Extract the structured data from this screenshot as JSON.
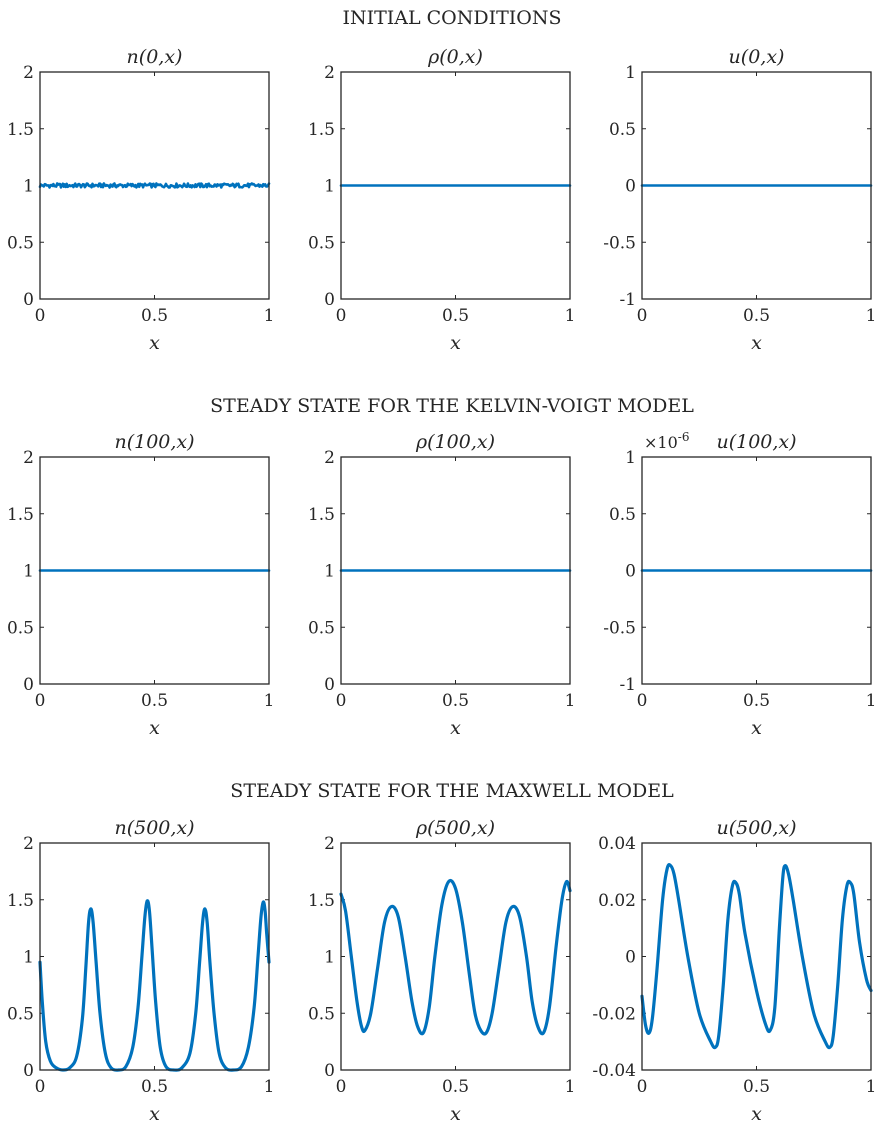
{
  "figure": {
    "line_color": "#0072BD",
    "axis_color": "#262626",
    "rows": [
      {
        "title": "INITIAL CONDITIONS"
      },
      {
        "title": "STEADY STATE FOR THE KELVIN-VOIGT MODEL"
      },
      {
        "title": "STEADY STATE FOR THE MAXWELL MODEL"
      }
    ]
  },
  "chart_data": [
    {
      "type": "line",
      "row": 0,
      "col": 0,
      "title": "n(0,x)",
      "xlabel": "x",
      "ylabel": "",
      "xlim": [
        0,
        1
      ],
      "ylim": [
        0,
        2
      ],
      "xticks": [
        "0",
        "0.5",
        "1"
      ],
      "yticks": [
        "0",
        "0.5",
        "1",
        "1.5",
        "2"
      ],
      "series": [
        {
          "kind": "noise",
          "base": 1.0,
          "amplitude": 0.03
        }
      ]
    },
    {
      "type": "line",
      "row": 0,
      "col": 1,
      "title": "ρ(0,x)",
      "xlabel": "x",
      "ylabel": "",
      "xlim": [
        0,
        1
      ],
      "ylim": [
        0,
        2
      ],
      "xticks": [
        "0",
        "0.5",
        "1"
      ],
      "yticks": [
        "0",
        "0.5",
        "1",
        "1.5",
        "2"
      ],
      "series": [
        {
          "kind": "constant",
          "value": 1.0
        }
      ]
    },
    {
      "type": "line",
      "row": 0,
      "col": 2,
      "title": "u(0,x)",
      "xlabel": "x",
      "ylabel": "",
      "xlim": [
        0,
        1
      ],
      "ylim": [
        -1,
        1
      ],
      "xticks": [
        "0",
        "0.5",
        "1"
      ],
      "yticks": [
        "-1",
        "-0.5",
        "0",
        "0.5",
        "1"
      ],
      "series": [
        {
          "kind": "constant",
          "value": 0.0
        }
      ]
    },
    {
      "type": "line",
      "row": 1,
      "col": 0,
      "title": "n(100,x)",
      "xlabel": "x",
      "ylabel": "",
      "xlim": [
        0,
        1
      ],
      "ylim": [
        0,
        2
      ],
      "xticks": [
        "0",
        "0.5",
        "1"
      ],
      "yticks": [
        "0",
        "0.5",
        "1",
        "1.5",
        "2"
      ],
      "series": [
        {
          "kind": "constant",
          "value": 1.0
        }
      ]
    },
    {
      "type": "line",
      "row": 1,
      "col": 1,
      "title": "ρ(100,x)",
      "xlabel": "x",
      "ylabel": "",
      "xlim": [
        0,
        1
      ],
      "ylim": [
        0,
        2
      ],
      "xticks": [
        "0",
        "0.5",
        "1"
      ],
      "yticks": [
        "0",
        "0.5",
        "1",
        "1.5",
        "2"
      ],
      "series": [
        {
          "kind": "constant",
          "value": 1.0
        }
      ]
    },
    {
      "type": "line",
      "row": 1,
      "col": 2,
      "title": "u(100,x)",
      "xlabel": "x",
      "ylabel": "",
      "xlim": [
        0,
        1
      ],
      "ylim": [
        -1,
        1
      ],
      "xticks": [
        "0",
        "0.5",
        "1"
      ],
      "yticks": [
        "-1",
        "-0.5",
        "0",
        "0.5",
        "1"
      ],
      "exponent_label": "×10",
      "exponent_power": "-6",
      "series": [
        {
          "kind": "constant",
          "value": 0.0
        }
      ]
    },
    {
      "type": "line",
      "row": 2,
      "col": 0,
      "title": "n(500,x)",
      "xlabel": "x",
      "ylabel": "",
      "xlim": [
        0,
        1
      ],
      "ylim": [
        0,
        2
      ],
      "xticks": [
        "0",
        "0.5",
        "1"
      ],
      "yticks": [
        "0",
        "0.5",
        "1",
        "1.5",
        "2"
      ],
      "series": [
        {
          "kind": "points",
          "x": [
            0,
            0.01,
            0.025,
            0.045,
            0.07,
            0.1,
            0.13,
            0.16,
            0.185,
            0.2,
            0.212,
            0.222,
            0.232,
            0.245,
            0.262,
            0.285,
            0.31,
            0.345,
            0.375,
            0.405,
            0.428,
            0.445,
            0.458,
            0.468,
            0.478,
            0.49,
            0.505,
            0.525,
            0.55,
            0.585,
            0.62,
            0.655,
            0.68,
            0.697,
            0.71,
            0.72,
            0.73,
            0.742,
            0.76,
            0.782,
            0.81,
            0.845,
            0.88,
            0.91,
            0.935,
            0.952,
            0.965,
            0.975,
            0.983,
            0.99,
            1.0
          ],
          "y": [
            0.95,
            0.6,
            0.25,
            0.08,
            0.02,
            0.0,
            0.02,
            0.12,
            0.45,
            0.9,
            1.3,
            1.42,
            1.3,
            0.95,
            0.5,
            0.15,
            0.02,
            0.0,
            0.03,
            0.2,
            0.55,
            1.0,
            1.35,
            1.49,
            1.4,
            1.05,
            0.6,
            0.2,
            0.03,
            0.0,
            0.02,
            0.15,
            0.5,
            0.95,
            1.3,
            1.42,
            1.3,
            0.95,
            0.5,
            0.15,
            0.02,
            0.0,
            0.03,
            0.2,
            0.55,
            1.0,
            1.35,
            1.48,
            1.4,
            1.2,
            0.95
          ]
        }
      ]
    },
    {
      "type": "line",
      "row": 2,
      "col": 1,
      "title": "ρ(500,x)",
      "xlabel": "x",
      "ylabel": "",
      "xlim": [
        0,
        1
      ],
      "ylim": [
        0,
        2
      ],
      "xticks": [
        "0",
        "0.5",
        "1"
      ],
      "yticks": [
        "0",
        "0.5",
        "1",
        "1.5",
        "2"
      ],
      "series": [
        {
          "kind": "points",
          "x": [
            0,
            0.02,
            0.045,
            0.07,
            0.09,
            0.105,
            0.13,
            0.16,
            0.19,
            0.22,
            0.25,
            0.28,
            0.31,
            0.335,
            0.36,
            0.385,
            0.41,
            0.44,
            0.47,
            0.5,
            0.53,
            0.56,
            0.585,
            0.61,
            0.635,
            0.66,
            0.69,
            0.72,
            0.75,
            0.78,
            0.81,
            0.835,
            0.86,
            0.885,
            0.91,
            0.94,
            0.965,
            0.985,
            1.0
          ],
          "y": [
            1.55,
            1.4,
            1.0,
            0.6,
            0.38,
            0.35,
            0.5,
            0.9,
            1.3,
            1.44,
            1.35,
            1.0,
            0.6,
            0.38,
            0.33,
            0.55,
            1.0,
            1.45,
            1.66,
            1.6,
            1.3,
            0.85,
            0.5,
            0.35,
            0.33,
            0.5,
            0.9,
            1.3,
            1.44,
            1.35,
            1.0,
            0.6,
            0.38,
            0.33,
            0.55,
            1.1,
            1.5,
            1.66,
            1.58
          ]
        }
      ]
    },
    {
      "type": "line",
      "row": 2,
      "col": 2,
      "title": "u(500,x)",
      "xlabel": "x",
      "ylabel": "",
      "xlim": [
        0,
        1
      ],
      "ylim": [
        -0.04,
        0.04
      ],
      "xticks": [
        "0",
        "0.5",
        "1"
      ],
      "yticks": [
        "-0.04",
        "-0.02",
        "0",
        "0.02",
        "0.04"
      ],
      "series": [
        {
          "kind": "points",
          "x": [
            0,
            0.015,
            0.03,
            0.045,
            0.065,
            0.09,
            0.11,
            0.125,
            0.14,
            0.16,
            0.2,
            0.25,
            0.3,
            0.32,
            0.335,
            0.355,
            0.375,
            0.395,
            0.41,
            0.425,
            0.45,
            0.5,
            0.54,
            0.56,
            0.58,
            0.6,
            0.615,
            0.625,
            0.64,
            0.66,
            0.7,
            0.75,
            0.8,
            0.82,
            0.835,
            0.855,
            0.875,
            0.895,
            0.91,
            0.925,
            0.95,
            0.98,
            1.0
          ],
          "y": [
            -0.014,
            -0.024,
            -0.027,
            -0.022,
            -0.005,
            0.02,
            0.031,
            0.032,
            0.029,
            0.02,
            0.0,
            -0.02,
            -0.03,
            -0.032,
            -0.028,
            -0.01,
            0.013,
            0.025,
            0.026,
            0.022,
            0.008,
            -0.012,
            -0.024,
            -0.026,
            -0.018,
            0.01,
            0.028,
            0.032,
            0.029,
            0.02,
            0.0,
            -0.02,
            -0.03,
            -0.032,
            -0.028,
            -0.01,
            0.013,
            0.025,
            0.026,
            0.022,
            0.005,
            -0.008,
            -0.012
          ]
        }
      ]
    }
  ]
}
